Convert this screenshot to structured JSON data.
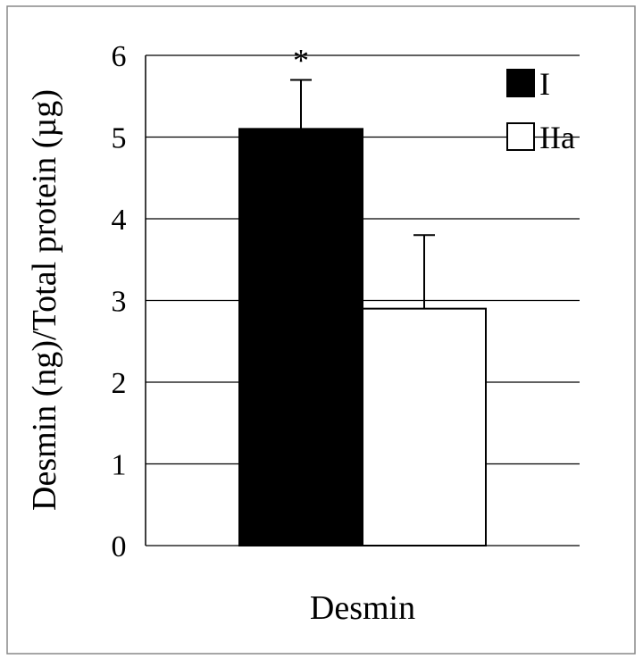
{
  "chart_data": {
    "type": "bar",
    "categories": [
      "Desmin"
    ],
    "series": [
      {
        "name": "I",
        "values": [
          5.1
        ],
        "error": [
          0.6
        ],
        "color": "#000000",
        "annotation": "*"
      },
      {
        "name": "IIa",
        "values": [
          2.9
        ],
        "error": [
          0.9
        ],
        "color": "#ffffff"
      }
    ],
    "ylabel": "Desmin (ng)/Total protein (µg)",
    "xlabel": "Desmin",
    "ylim": [
      0,
      6
    ],
    "yticks": [
      "0",
      "1",
      "2",
      "3",
      "4",
      "5",
      "6"
    ],
    "grid": true,
    "legend": "top-right"
  }
}
